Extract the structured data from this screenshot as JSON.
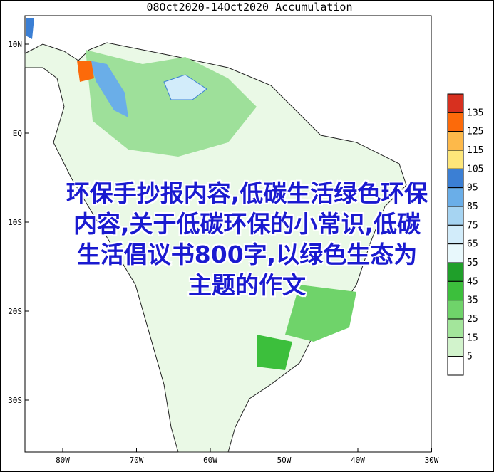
{
  "title": "08Oct2020-14Oct2020 Accumulation",
  "lat_labels": [
    "10N",
    "EQ",
    "10S",
    "20S",
    "30S"
  ],
  "lon_labels": [
    "80W",
    "70W",
    "60W",
    "50W",
    "40W",
    "30W"
  ],
  "legend": {
    "levels": [
      135,
      125,
      115,
      105,
      95,
      85,
      75,
      65,
      55,
      45,
      35,
      25,
      15,
      5
    ],
    "colors": [
      "#d7301f",
      "#fc6a0a",
      "#fdb94a",
      "#fde67a",
      "#3b7fd4",
      "#6aaee8",
      "#a6d4f2",
      "#d2ecfa",
      "#e8f8fc",
      "#1f9f2a",
      "#3cbf3c",
      "#6fd36a",
      "#a3e59b",
      "#d2f3cc",
      "#ffffff"
    ]
  },
  "overlay_lines": [
    "环保手抄报内容,低碳生活绿色环保",
    "内容,关于低碳环保的小常识,低碳",
    "生活倡议书800字,以绿色生态为",
    "主题的作文"
  ]
}
